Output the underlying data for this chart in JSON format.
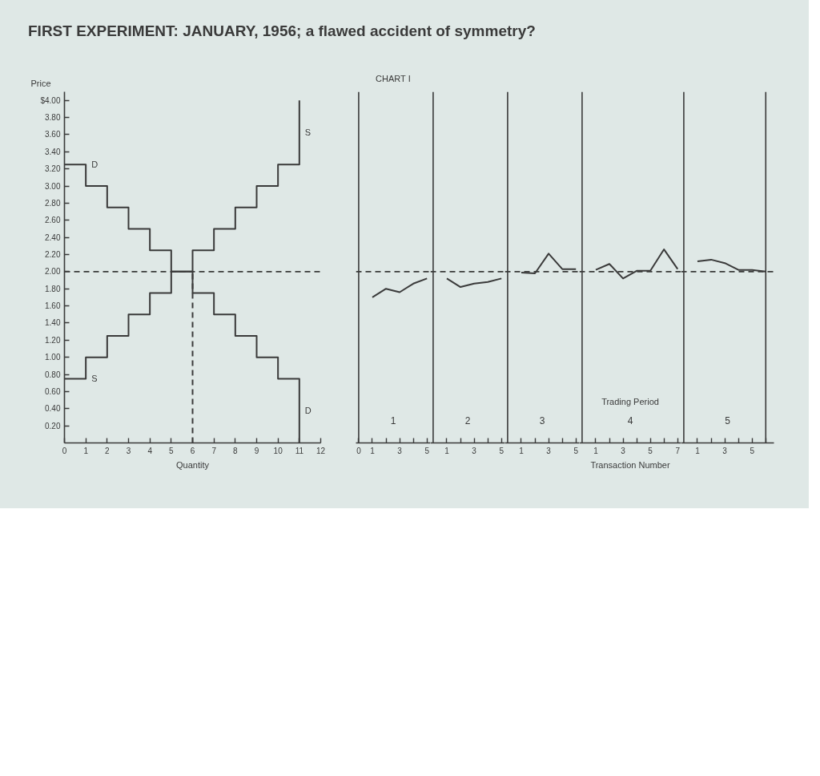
{
  "chart_data": [
    {
      "type": "step",
      "title": "FIRST EXPERIMENT: JANUARY, 1956; a flawed accident of symmetry?",
      "xlabel": "Quantity",
      "ylabel": "Price",
      "xlim": [
        0,
        12
      ],
      "xticks": [
        0,
        1,
        2,
        3,
        4,
        5,
        6,
        7,
        8,
        9,
        10,
        11,
        12
      ],
      "ylim": [
        0,
        4.1
      ],
      "yticks": [
        {
          "value": 0.2,
          "label": "0.20"
        },
        {
          "value": 0.4,
          "label": "0.40"
        },
        {
          "value": 0.6,
          "label": "0.60"
        },
        {
          "value": 0.8,
          "label": "0.80"
        },
        {
          "value": 1,
          "label": "1.00"
        },
        {
          "value": 1.2,
          "label": "1.20"
        },
        {
          "value": 1.4,
          "label": "1.40"
        },
        {
          "value": 1.6,
          "label": "1.60"
        },
        {
          "value": 1.8,
          "label": "1.80"
        },
        {
          "value": 2,
          "label": "2.00"
        },
        {
          "value": 2.2,
          "label": "2.20"
        },
        {
          "value": 2.4,
          "label": "2.40"
        },
        {
          "value": 2.6,
          "label": "2.60"
        },
        {
          "value": 2.8,
          "label": "2.80"
        },
        {
          "value": 3,
          "label": "3.00"
        },
        {
          "value": 3.2,
          "label": "3.20"
        },
        {
          "value": 3.4,
          "label": "3.40"
        },
        {
          "value": 3.6,
          "label": "3.60"
        },
        {
          "value": 3.8,
          "label": "3.80"
        },
        {
          "value": 4,
          "label": "$4.00"
        }
      ],
      "series": [
        {
          "name": "D",
          "color": "#3a3a3a",
          "x": [
            0,
            1,
            2,
            3,
            4,
            5,
            6,
            7,
            8,
            9,
            10,
            11
          ],
          "values": [
            3.25,
            3,
            2.75,
            2.5,
            2.25,
            2,
            1.75,
            1.5,
            1.25,
            1,
            0.75,
            0
          ]
        },
        {
          "name": "S",
          "color": "#3a3a3a",
          "x": [
            0,
            1,
            2,
            3,
            4,
            5,
            6,
            7,
            8,
            9,
            10,
            11
          ],
          "values": [
            0.75,
            1,
            1.25,
            1.5,
            1.75,
            2,
            2.25,
            2.5,
            2.75,
            3,
            3.25,
            4
          ]
        },
        {
          "type": "line",
          "color": "#3a3a3a",
          "line_style": "dashed",
          "x": [
            6,
            6
          ],
          "values": [
            0,
            2
          ]
        }
      ],
      "ref_lines": [
        {
          "axis": "y",
          "value": 2,
          "color": "#3a3a3a",
          "line_style": "dashed"
        }
      ]
    },
    {
      "type": "line",
      "title": "CHART I",
      "tick_labels": "x",
      "xlim": [
        -0.2,
        5.25
      ],
      "ylim": [
        0,
        4.1
      ],
      "xticks": [
        0,
        1,
        {
          "value": 2,
          "label": null
        },
        3,
        {
          "value": 4,
          "label": null
        },
        5
      ],
      "series": [
        {
          "color": "#3a3a3a",
          "x": [
            1,
            2,
            3,
            4,
            5
          ],
          "values": [
            1.7,
            1.8,
            1.76,
            1.86,
            1.92
          ]
        }
      ],
      "ref_lines": [
        {
          "axis": "y",
          "value": 2,
          "color": "#3a3a3a",
          "line_style": "dashed"
        },
        {
          "axis": "x",
          "value": 0,
          "color": "#3a3a3a"
        }
      ],
      "annotations": [
        "1"
      ]
    },
    {
      "type": "line",
      "tick_labels": "x",
      "xlim": [
        -0.2,
        5.25
      ],
      "ylim": [
        0,
        4.1
      ],
      "xticks": [
        1,
        {
          "value": 2,
          "label": null
        },
        3,
        {
          "value": 4,
          "label": null
        },
        5
      ],
      "series": [
        {
          "color": "#3a3a3a",
          "x": [
            1,
            2,
            3,
            4,
            5
          ],
          "values": [
            1.92,
            1.82,
            1.86,
            1.88,
            1.92
          ]
        }
      ],
      "ref_lines": [
        {
          "axis": "y",
          "value": 2,
          "color": "#3a3a3a",
          "line_style": "dashed"
        },
        {
          "axis": "x",
          "value": 0,
          "color": "#3a3a3a"
        }
      ],
      "annotations": [
        "2"
      ]
    },
    {
      "type": "line",
      "tick_labels": "x",
      "xlim": [
        -0.2,
        5.25
      ],
      "ylim": [
        0,
        4.1
      ],
      "xticks": [
        1,
        {
          "value": 2,
          "label": null
        },
        3,
        {
          "value": 4,
          "label": null
        },
        5
      ],
      "series": [
        {
          "color": "#3a3a3a",
          "x": [
            1,
            2,
            3,
            4,
            5
          ],
          "values": [
            1.99,
            1.98,
            2.21,
            2.03,
            2.03
          ]
        }
      ],
      "ref_lines": [
        {
          "axis": "y",
          "value": 2,
          "color": "#3a3a3a",
          "line_style": "dashed"
        },
        {
          "axis": "x",
          "value": 0,
          "color": "#3a3a3a"
        }
      ],
      "annotations": [
        "3"
      ]
    },
    {
      "type": "line",
      "tick_labels": "x",
      "xlabel": "Transaction Number",
      "xlim": [
        -0.2,
        7.25
      ],
      "ylim": [
        0,
        4.1
      ],
      "xticks": [
        1,
        {
          "value": 2,
          "label": null
        },
        3,
        {
          "value": 4,
          "label": null
        },
        5,
        {
          "value": 6,
          "label": null
        },
        7
      ],
      "series": [
        {
          "color": "#3a3a3a",
          "x": [
            1,
            2,
            3,
            4,
            5,
            6,
            7
          ],
          "values": [
            2.02,
            2.09,
            1.92,
            2.01,
            2.01,
            2.26,
            2.03
          ]
        }
      ],
      "ref_lines": [
        {
          "axis": "y",
          "value": 2,
          "color": "#3a3a3a",
          "line_style": "dashed"
        },
        {
          "axis": "x",
          "value": 0,
          "color": "#3a3a3a"
        }
      ],
      "annotations": [
        "Trading Period",
        "4"
      ]
    },
    {
      "type": "line",
      "tick_labels": "x",
      "xlim": [
        -0.2,
        6.6
      ],
      "ylim": [
        0,
        4.1
      ],
      "xticks": [
        1,
        {
          "value": 2,
          "label": null
        },
        3,
        {
          "value": 4,
          "label": null
        },
        5,
        {
          "value": 6,
          "label": null
        }
      ],
      "series": [
        {
          "color": "#3a3a3a",
          "x": [
            1,
            2,
            3,
            4,
            5,
            6
          ],
          "values": [
            2.12,
            2.14,
            2.1,
            2.02,
            2.02,
            2.0
          ]
        }
      ],
      "ref_lines": [
        {
          "axis": "y",
          "value": 2,
          "color": "#3a3a3a",
          "line_style": "dashed"
        },
        {
          "axis": "x",
          "value": 0,
          "color": "#3a3a3a"
        },
        {
          "axis": "x",
          "value": 6,
          "color": "#3a3a3a"
        }
      ],
      "annotations": [
        "5"
      ]
    }
  ]
}
